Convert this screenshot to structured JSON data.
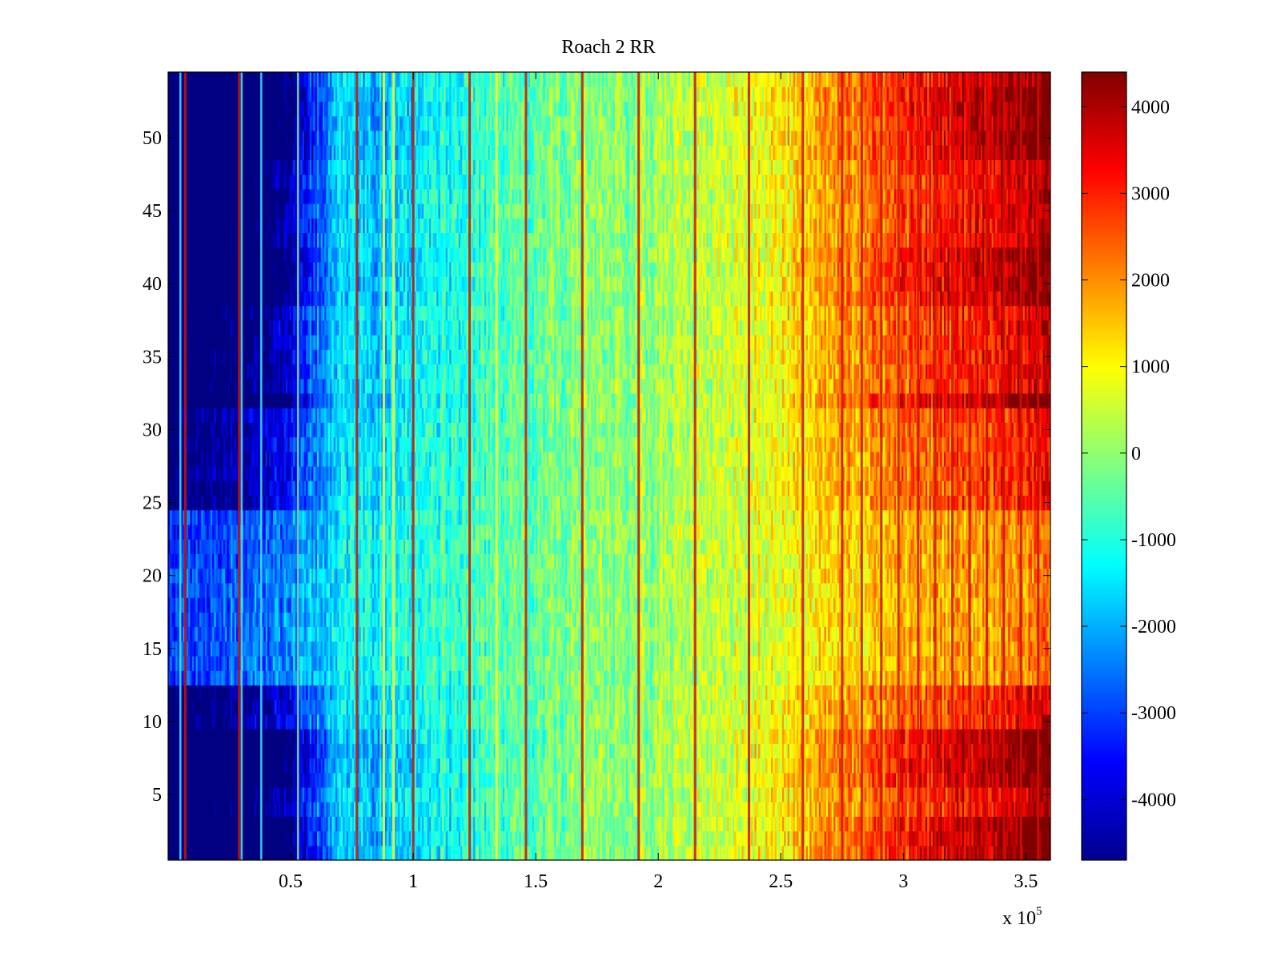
{
  "chart_data": {
    "type": "heatmap",
    "title": "Roach 2 RR",
    "xlabel": "",
    "ylabel": "",
    "x_exponent_label": "x 10",
    "x_exponent_power": "5",
    "xlim": [
      0,
      360000
    ],
    "ylim": [
      0.5,
      54.5
    ],
    "rows": 54,
    "x_ticks": [
      {
        "value": 50000,
        "label": "0.5"
      },
      {
        "value": 100000,
        "label": "1"
      },
      {
        "value": 150000,
        "label": "1.5"
      },
      {
        "value": 200000,
        "label": "2"
      },
      {
        "value": 250000,
        "label": "2.5"
      },
      {
        "value": 300000,
        "label": "3"
      },
      {
        "value": 350000,
        "label": "3.5"
      }
    ],
    "y_ticks": [
      {
        "value": 5,
        "label": "5"
      },
      {
        "value": 10,
        "label": "10"
      },
      {
        "value": 15,
        "label": "15"
      },
      {
        "value": 20,
        "label": "20"
      },
      {
        "value": 25,
        "label": "25"
      },
      {
        "value": 30,
        "label": "30"
      },
      {
        "value": 35,
        "label": "35"
      },
      {
        "value": 40,
        "label": "40"
      },
      {
        "value": 45,
        "label": "45"
      },
      {
        "value": 50,
        "label": "50"
      }
    ],
    "colorbar": {
      "colormap": "jet",
      "clim": [
        -4700,
        4400
      ],
      "ticks": [
        {
          "value": 4000,
          "label": "4000"
        },
        {
          "value": 3000,
          "label": "3000"
        },
        {
          "value": 2000,
          "label": "2000"
        },
        {
          "value": 1000,
          "label": "1000"
        },
        {
          "value": 0,
          "label": "0"
        },
        {
          "value": -1000,
          "label": "-1000"
        },
        {
          "value": -2000,
          "label": "-2000"
        },
        {
          "value": -3000,
          "label": "-3000"
        },
        {
          "value": -4000,
          "label": "-4000"
        }
      ]
    },
    "column_profile": {
      "x": [
        0,
        20000,
        40000,
        55000,
        70000,
        85000,
        100000,
        130000,
        160000,
        200000,
        240000,
        280000,
        320000,
        360000
      ],
      "base": [
        -3600,
        -3300,
        -3000,
        -2300,
        -1300,
        -1300,
        -1000,
        -650,
        -200,
        100,
        650,
        1450,
        2050,
        2500
      ],
      "amp": [
        1.0,
        1.0,
        0.95,
        0.8,
        0.25,
        0.55,
        0.55,
        0.3,
        0.15,
        0.1,
        0.35,
        0.6,
        0.8,
        0.9
      ]
    },
    "row_bands": [
      {
        "from": 1,
        "to": 3,
        "weight": 1.0
      },
      {
        "from": 4,
        "to": 5,
        "weight": 0.65
      },
      {
        "from": 6,
        "to": 9,
        "weight": 1.0
      },
      {
        "from": 10,
        "to": 12,
        "weight": 0.45
      },
      {
        "from": 13,
        "to": 20,
        "weight": -0.15
      },
      {
        "from": 21,
        "to": 24,
        "weight": -0.1
      },
      {
        "from": 25,
        "to": 31,
        "weight": 0.35
      },
      {
        "from": 32,
        "to": 32,
        "weight": 1.0
      },
      {
        "from": 33,
        "to": 38,
        "weight": 0.55
      },
      {
        "from": 39,
        "to": 42,
        "weight": 0.9
      },
      {
        "from": 43,
        "to": 48,
        "weight": 0.7
      },
      {
        "from": 49,
        "to": 53,
        "weight": 1.0
      },
      {
        "from": 54,
        "to": 54,
        "weight": 0.85
      }
    ],
    "stripes": {
      "red_x": [
        7000,
        29000,
        53000,
        77000,
        100000,
        123000,
        146000,
        169000,
        192000,
        215000,
        237000,
        259000,
        275000,
        283000,
        291000,
        298000,
        306000,
        313000,
        320000,
        327000,
        334000,
        341000,
        348000,
        355000
      ],
      "cyan_x": [
        5000,
        30000,
        38000,
        53000
      ],
      "yellow_x": [
        88000,
        92000,
        134000
      ]
    }
  }
}
